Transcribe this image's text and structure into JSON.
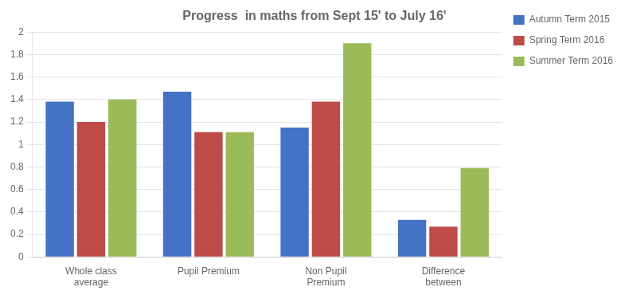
{
  "chart_data": {
    "type": "bar",
    "title": "Progress  in maths from Sept 15' to July 16'",
    "categories": [
      "Whole class\naverage",
      "Pupil Premium",
      "Non Pupil\nPremium",
      "Difference\nbetween"
    ],
    "series": [
      {
        "name": "Autumn Term 2015",
        "color": "#4472C4",
        "values": [
          1.38,
          1.47,
          1.15,
          0.33
        ]
      },
      {
        "name": "Spring Term 2016",
        "color": "#BE4B48",
        "values": [
          1.2,
          1.11,
          1.38,
          0.27
        ]
      },
      {
        "name": "Summer Term 2016",
        "color": "#9BBB59",
        "values": [
          1.4,
          1.11,
          1.9,
          0.79
        ]
      }
    ],
    "ylim": [
      0,
      2.0
    ],
    "yticks": [
      0,
      0.2,
      0.4,
      0.6,
      0.8,
      1,
      1.2,
      1.4,
      1.6,
      1.8,
      2
    ],
    "grid": true,
    "legend": "right"
  }
}
